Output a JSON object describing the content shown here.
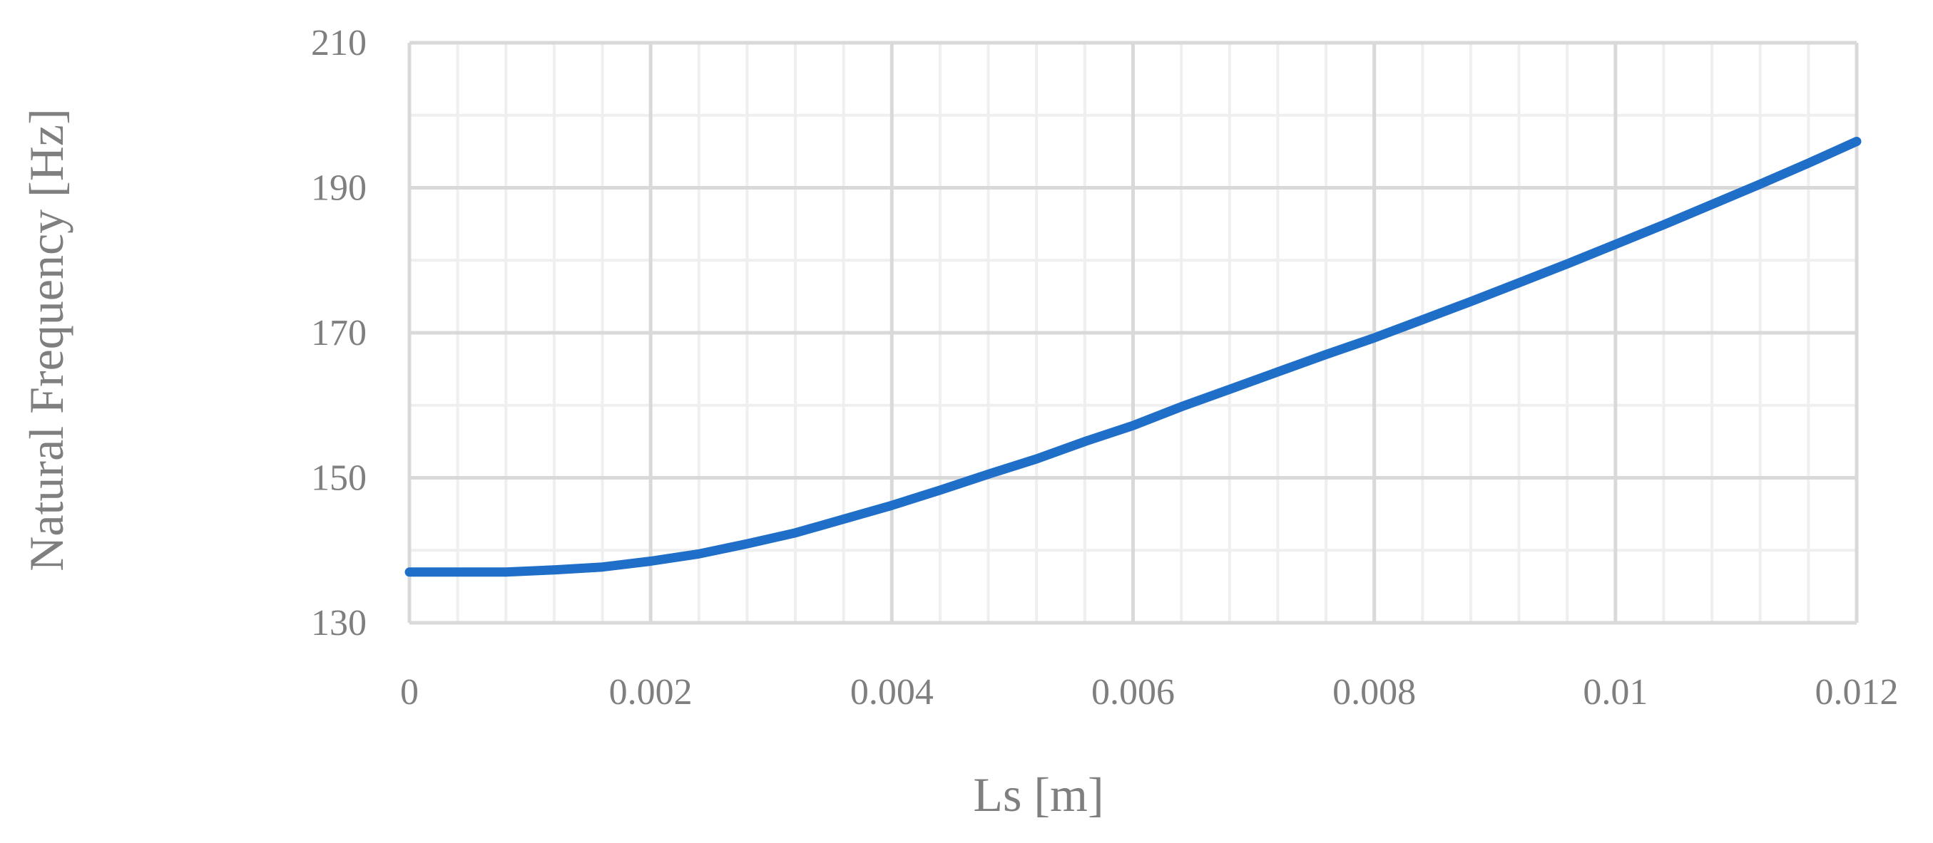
{
  "chart_data": {
    "type": "line",
    "title": "",
    "xlabel": "Ls [m]",
    "ylabel": "Natural Frequency [Hz]",
    "xlim": [
      0,
      0.012
    ],
    "ylim": [
      130,
      210
    ],
    "x_ticks": [
      "0",
      "0.002",
      "0.004",
      "0.006",
      "0.008",
      "0.01",
      "0.012"
    ],
    "y_ticks": [
      "130",
      "150",
      "170",
      "190",
      "210"
    ],
    "grid": true,
    "minor_grid": true,
    "legend": "none",
    "series_color": "#1f6fc8",
    "series": [
      {
        "x": [
          0,
          0.0004,
          0.0008,
          0.0012,
          0.0016,
          0.002,
          0.0024,
          0.0028,
          0.0032,
          0.0036,
          0.004,
          0.0044,
          0.0048,
          0.0052,
          0.0056,
          0.006,
          0.0064,
          0.0068,
          0.0072,
          0.0076,
          0.008,
          0.0084,
          0.0088,
          0.0092,
          0.0096,
          0.01,
          0.0104,
          0.0108,
          0.0112,
          0.0116,
          0.012
        ],
        "y": [
          137,
          137,
          137,
          137.3,
          137.7,
          138.5,
          139.5,
          140.9,
          142.4,
          144.3,
          146.2,
          148.3,
          150.5,
          152.6,
          155,
          157.2,
          159.8,
          162.2,
          164.6,
          167,
          169.3,
          171.8,
          174.3,
          176.9,
          179.5,
          182.2,
          184.9,
          187.7,
          190.5,
          193.4,
          196.4
        ]
      }
    ]
  }
}
